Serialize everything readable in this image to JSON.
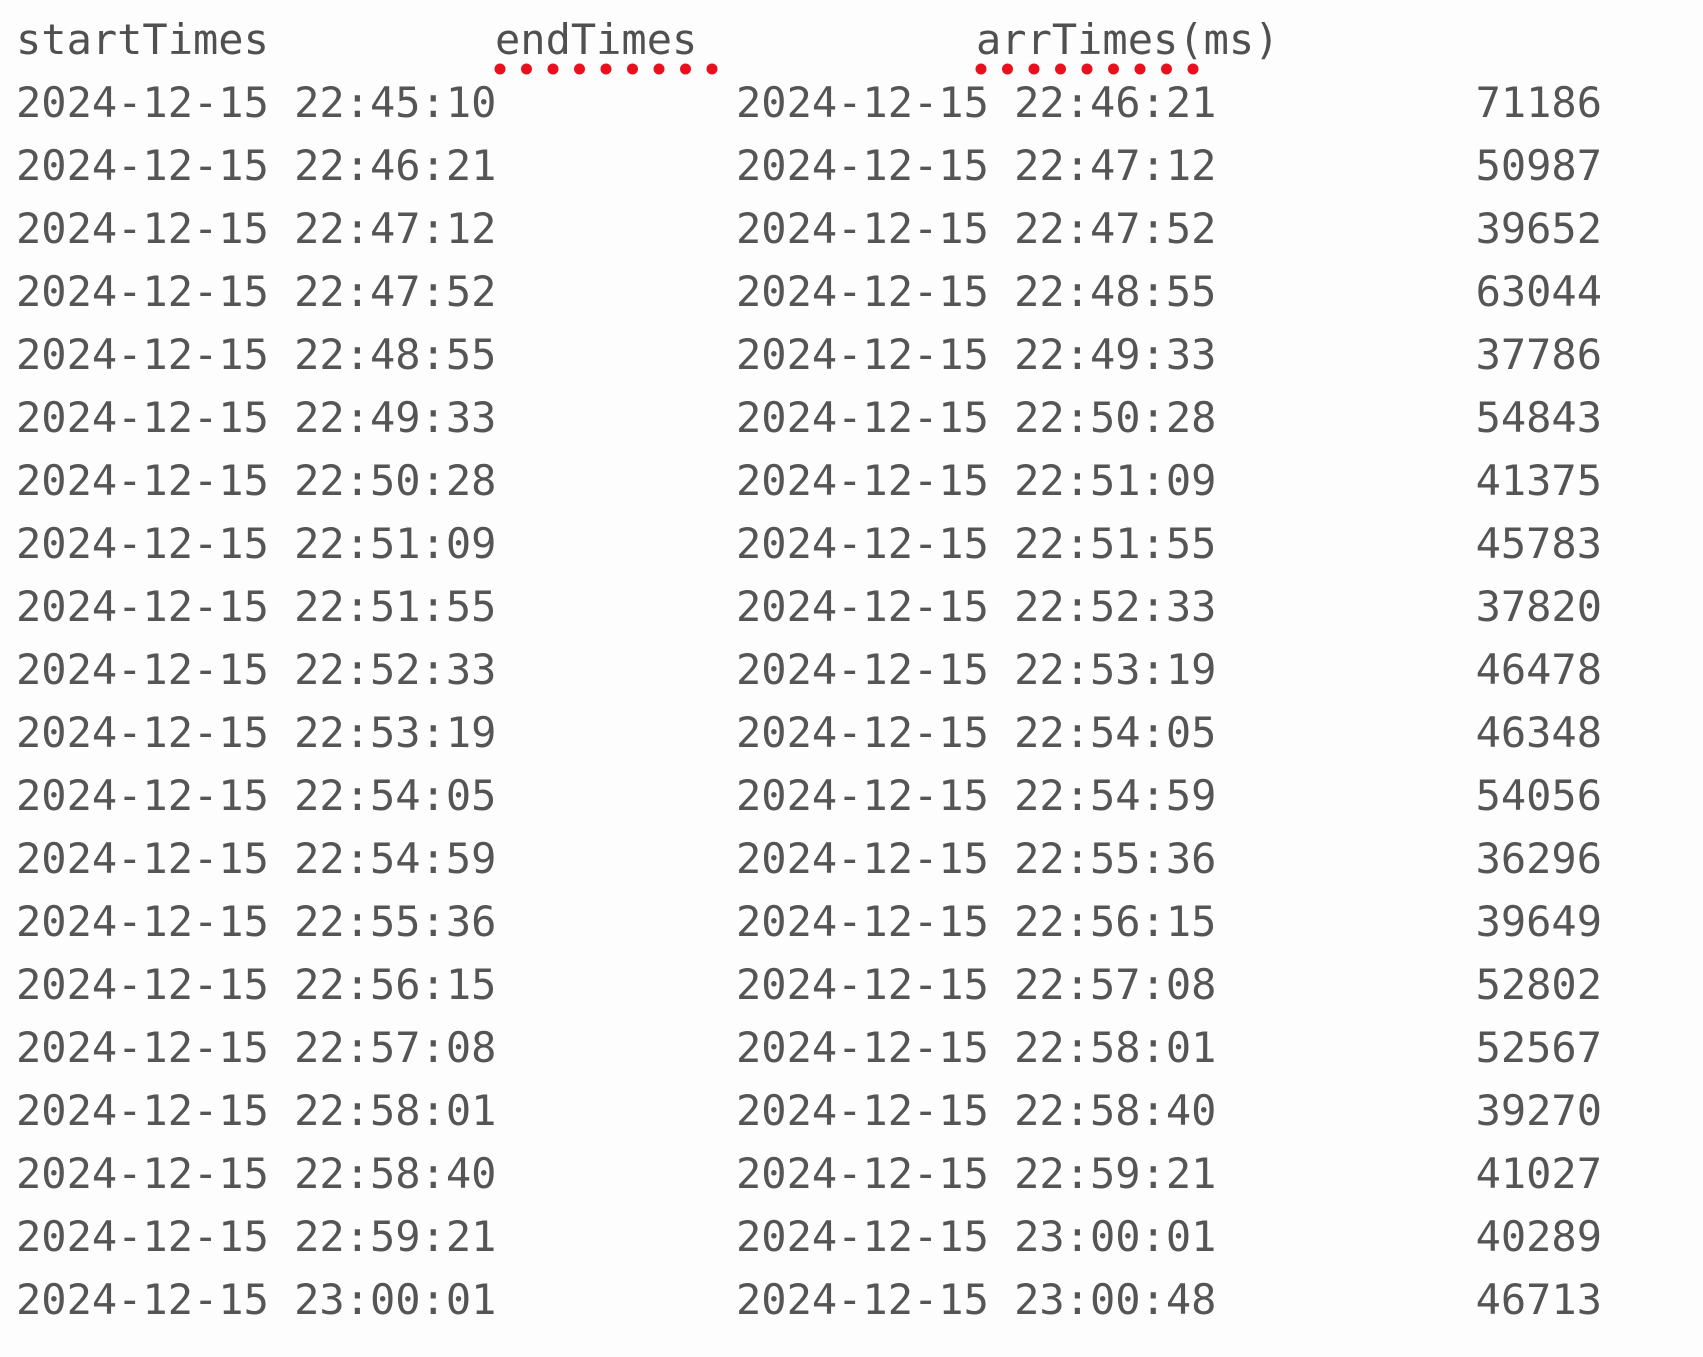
{
  "header": {
    "start": "startTimes",
    "end": "endTimes",
    "arr_name": "arrTimes",
    "arr_unit": "(ms)"
  },
  "spellcheck_color": "#e8101c",
  "rows": [
    {
      "start": "2024-12-15 22:45:10",
      "end": "2024-12-15 22:46:21",
      "arr": "71186"
    },
    {
      "start": "2024-12-15 22:46:21",
      "end": "2024-12-15 22:47:12",
      "arr": "50987"
    },
    {
      "start": "2024-12-15 22:47:12",
      "end": "2024-12-15 22:47:52",
      "arr": "39652"
    },
    {
      "start": "2024-12-15 22:47:52",
      "end": "2024-12-15 22:48:55",
      "arr": "63044"
    },
    {
      "start": "2024-12-15 22:48:55",
      "end": "2024-12-15 22:49:33",
      "arr": "37786"
    },
    {
      "start": "2024-12-15 22:49:33",
      "end": "2024-12-15 22:50:28",
      "arr": "54843"
    },
    {
      "start": "2024-12-15 22:50:28",
      "end": "2024-12-15 22:51:09",
      "arr": "41375"
    },
    {
      "start": "2024-12-15 22:51:09",
      "end": "2024-12-15 22:51:55",
      "arr": "45783"
    },
    {
      "start": "2024-12-15 22:51:55",
      "end": "2024-12-15 22:52:33",
      "arr": "37820"
    },
    {
      "start": "2024-12-15 22:52:33",
      "end": "2024-12-15 22:53:19",
      "arr": "46478"
    },
    {
      "start": "2024-12-15 22:53:19",
      "end": "2024-12-15 22:54:05",
      "arr": "46348"
    },
    {
      "start": "2024-12-15 22:54:05",
      "end": "2024-12-15 22:54:59",
      "arr": "54056"
    },
    {
      "start": "2024-12-15 22:54:59",
      "end": "2024-12-15 22:55:36",
      "arr": "36296"
    },
    {
      "start": "2024-12-15 22:55:36",
      "end": "2024-12-15 22:56:15",
      "arr": "39649"
    },
    {
      "start": "2024-12-15 22:56:15",
      "end": "2024-12-15 22:57:08",
      "arr": "52802"
    },
    {
      "start": "2024-12-15 22:57:08",
      "end": "2024-12-15 22:58:01",
      "arr": "52567"
    },
    {
      "start": "2024-12-15 22:58:01",
      "end": "2024-12-15 22:58:40",
      "arr": "39270"
    },
    {
      "start": "2024-12-15 22:58:40",
      "end": "2024-12-15 22:59:21",
      "arr": "41027"
    },
    {
      "start": "2024-12-15 22:59:21",
      "end": "2024-12-15 23:00:01",
      "arr": "40289"
    },
    {
      "start": "2024-12-15 23:00:01",
      "end": "2024-12-15 23:00:48",
      "arr": "46713"
    }
  ]
}
